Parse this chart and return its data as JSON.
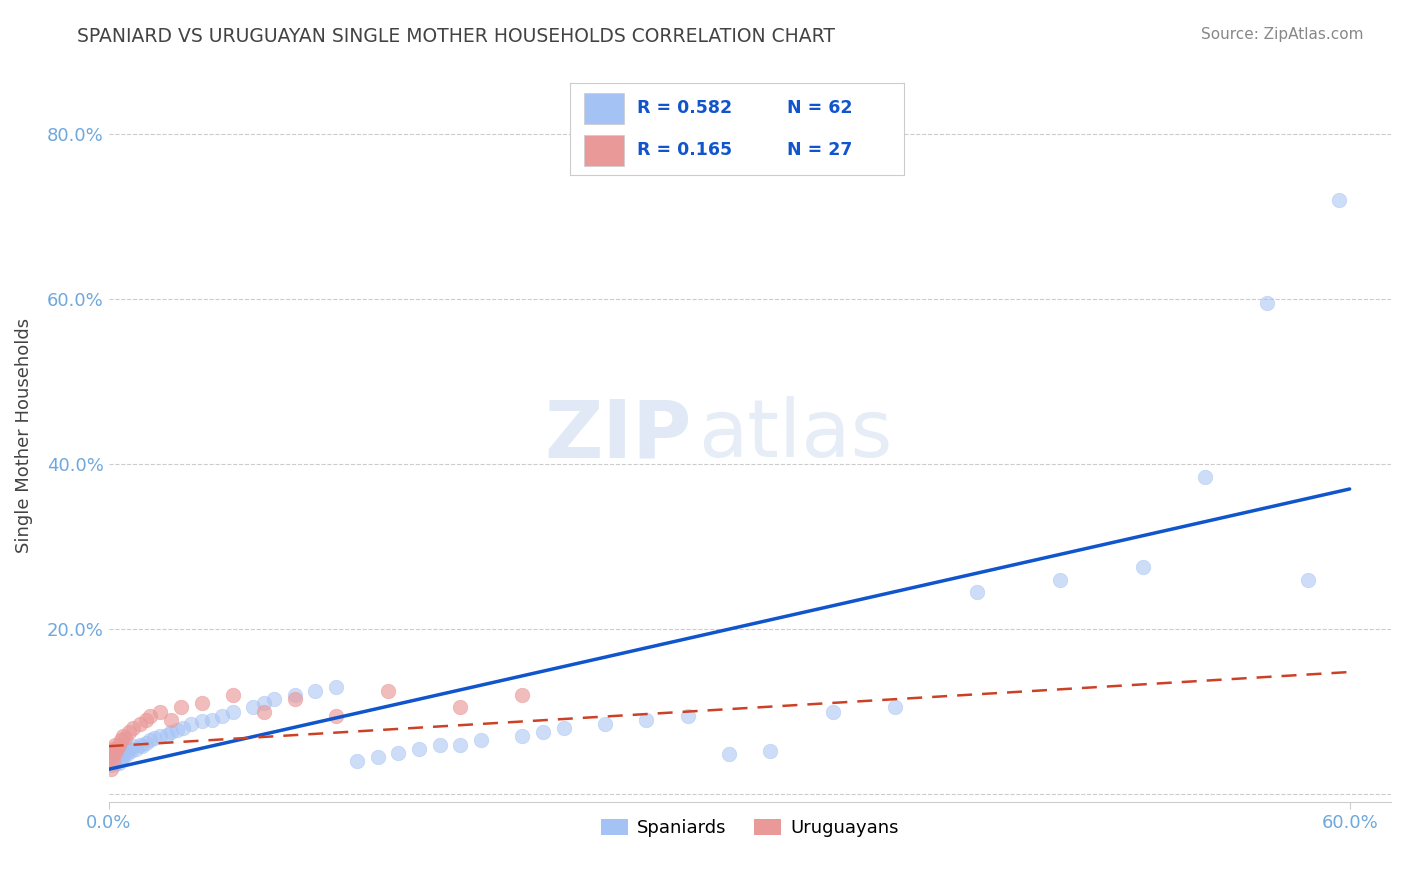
{
  "title": "SPANIARD VS URUGUAYAN SINGLE MOTHER HOUSEHOLDS CORRELATION CHART",
  "source_text": "Source: ZipAtlas.com",
  "ylabel": "Single Mother Households",
  "xlim": [
    0.0,
    0.62
  ],
  "ylim": [
    -0.01,
    0.88
  ],
  "yticks": [
    0.0,
    0.2,
    0.4,
    0.6,
    0.8
  ],
  "xtick_label_left": "0.0%",
  "xtick_label_right": "60.0%",
  "legend_blue_r": "R = 0.582",
  "legend_blue_n": "N = 62",
  "legend_pink_r": "R = 0.165",
  "legend_pink_n": "N = 27",
  "watermark_zip": "ZIP",
  "watermark_atlas": "atlas",
  "blue_color": "#a4c2f4",
  "pink_color": "#ea9999",
  "line_blue_color": "#1155cc",
  "line_pink_color": "#cc4125",
  "title_color": "#434343",
  "tick_color": "#6fa8dc",
  "grid_color": "#cccccc",
  "background_color": "#ffffff",
  "spaniards_x": [
    0.001,
    0.001,
    0.002,
    0.002,
    0.003,
    0.003,
    0.004,
    0.004,
    0.005,
    0.006,
    0.007,
    0.008,
    0.009,
    0.01,
    0.011,
    0.012,
    0.013,
    0.015,
    0.016,
    0.018,
    0.02,
    0.022,
    0.025,
    0.028,
    0.03,
    0.033,
    0.036,
    0.04,
    0.045,
    0.05,
    0.055,
    0.06,
    0.07,
    0.075,
    0.08,
    0.09,
    0.1,
    0.11,
    0.12,
    0.13,
    0.14,
    0.15,
    0.16,
    0.17,
    0.18,
    0.2,
    0.21,
    0.22,
    0.24,
    0.26,
    0.28,
    0.3,
    0.32,
    0.35,
    0.38,
    0.42,
    0.46,
    0.5,
    0.53,
    0.56,
    0.58,
    0.595
  ],
  "spaniards_y": [
    0.035,
    0.04,
    0.038,
    0.042,
    0.036,
    0.045,
    0.04,
    0.048,
    0.038,
    0.042,
    0.045,
    0.05,
    0.048,
    0.055,
    0.052,
    0.058,
    0.055,
    0.06,
    0.058,
    0.062,
    0.065,
    0.068,
    0.07,
    0.072,
    0.075,
    0.078,
    0.08,
    0.085,
    0.088,
    0.09,
    0.095,
    0.1,
    0.105,
    0.11,
    0.115,
    0.12,
    0.125,
    0.13,
    0.04,
    0.045,
    0.05,
    0.055,
    0.06,
    0.06,
    0.065,
    0.07,
    0.075,
    0.08,
    0.085,
    0.09,
    0.095,
    0.048,
    0.052,
    0.1,
    0.105,
    0.245,
    0.26,
    0.275,
    0.385,
    0.595,
    0.26,
    0.72
  ],
  "uruguayans_x": [
    0.001,
    0.001,
    0.002,
    0.002,
    0.003,
    0.003,
    0.004,
    0.005,
    0.006,
    0.007,
    0.008,
    0.01,
    0.012,
    0.015,
    0.018,
    0.02,
    0.025,
    0.03,
    0.035,
    0.045,
    0.06,
    0.075,
    0.09,
    0.11,
    0.135,
    0.17,
    0.2
  ],
  "uruguayans_y": [
    0.03,
    0.045,
    0.04,
    0.055,
    0.05,
    0.06,
    0.055,
    0.06,
    0.065,
    0.07,
    0.068,
    0.075,
    0.08,
    0.085,
    0.09,
    0.095,
    0.1,
    0.09,
    0.105,
    0.11,
    0.12,
    0.1,
    0.115,
    0.095,
    0.125,
    0.105,
    0.12
  ],
  "blue_trendline_x": [
    0.0,
    0.6
  ],
  "blue_trendline_y": [
    0.03,
    0.37
  ],
  "pink_trendline_x": [
    0.0,
    0.6
  ],
  "pink_trendline_y": [
    0.058,
    0.148
  ]
}
